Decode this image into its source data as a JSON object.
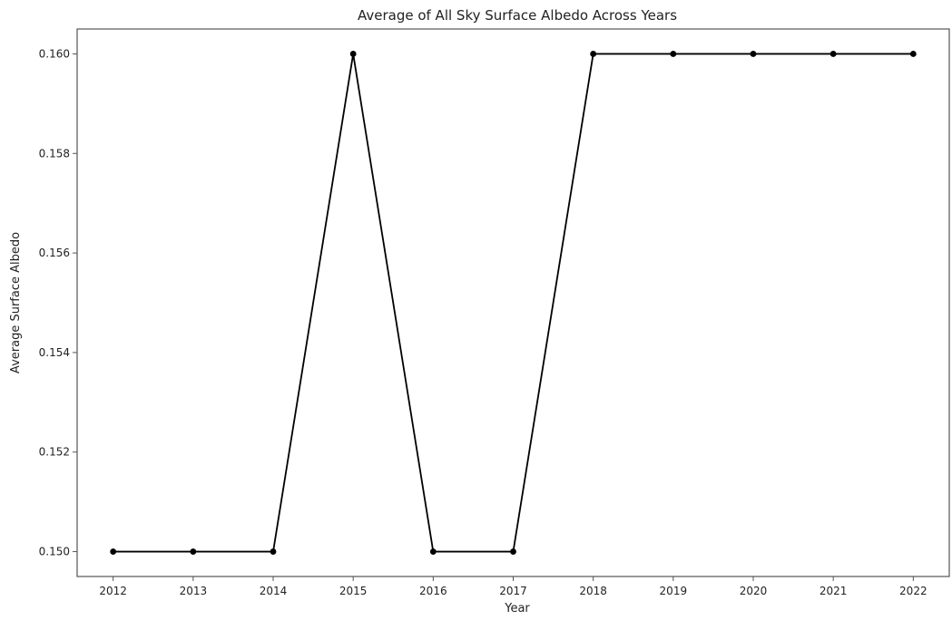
{
  "chart_data": {
    "type": "line",
    "title": "Average of All Sky Surface Albedo Across Years",
    "xlabel": "Year",
    "ylabel": "Average Surface Albedo",
    "x": [
      2012,
      2013,
      2014,
      2015,
      2016,
      2017,
      2018,
      2019,
      2020,
      2021,
      2022
    ],
    "series": [
      {
        "values": [
          0.15,
          0.15,
          0.15,
          0.16,
          0.15,
          0.15,
          0.16,
          0.16,
          0.16,
          0.16,
          0.16
        ]
      }
    ],
    "x_tick_labels": [
      "2012",
      "2013",
      "2014",
      "2015",
      "2016",
      "2017",
      "2018",
      "2019",
      "2020",
      "2021",
      "2022"
    ],
    "y_ticks": [
      0.15,
      0.152,
      0.154,
      0.156,
      0.158,
      0.16
    ],
    "y_tick_labels": [
      "0.150",
      "0.152",
      "0.154",
      "0.156",
      "0.158",
      "0.160"
    ],
    "xlim": [
      2011.55,
      2022.45
    ],
    "ylim": [
      0.1495,
      0.1605
    ],
    "grid": false,
    "colors": {
      "line": "#000000",
      "marker": "#000000",
      "axes": "#555555"
    }
  }
}
